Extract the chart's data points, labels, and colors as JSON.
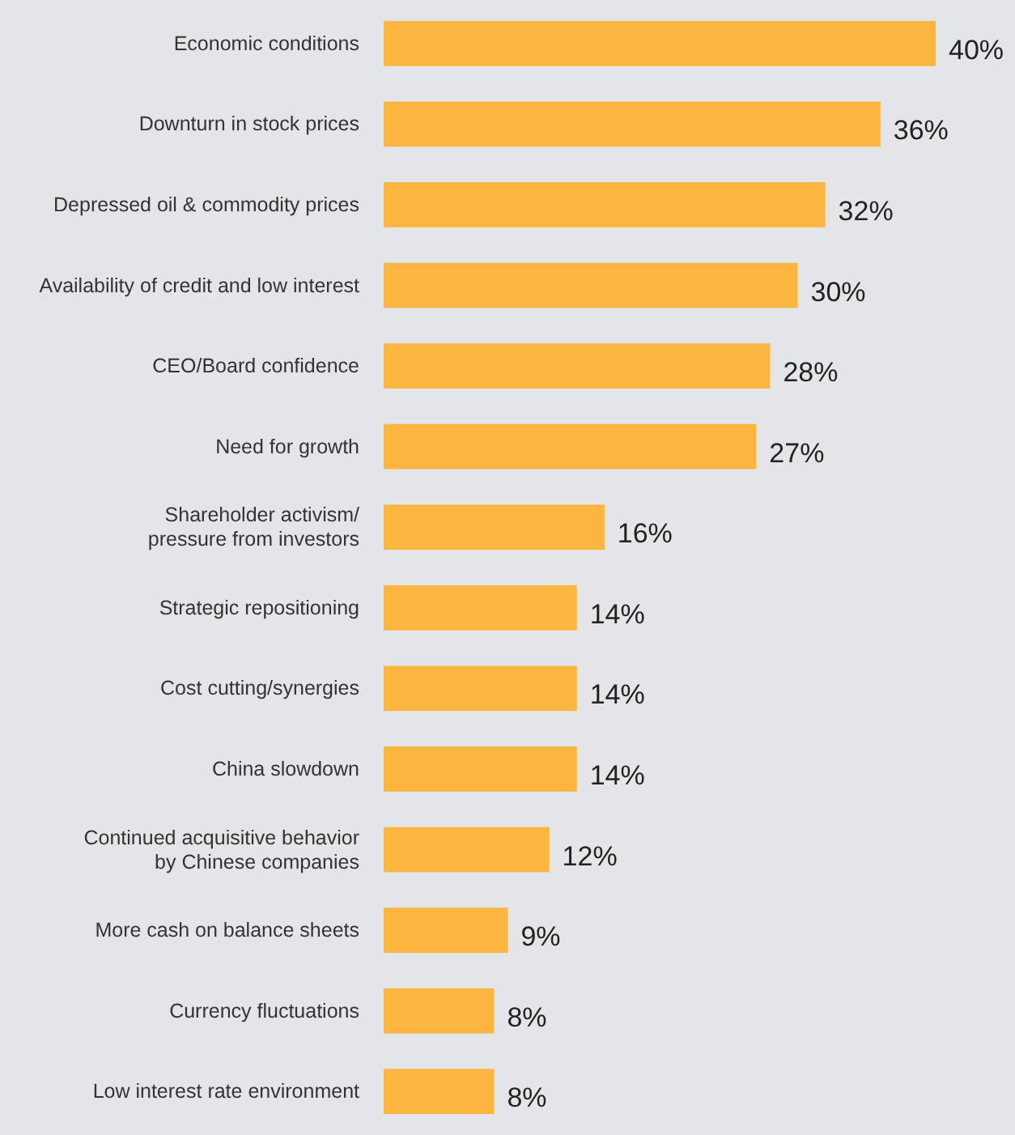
{
  "chart_data": {
    "type": "bar",
    "orientation": "horizontal",
    "categories": [
      "Economic conditions",
      "Downturn in stock prices",
      "Depressed oil & commodity prices",
      "Availability of credit and low interest",
      "CEO/Board confidence",
      "Need for growth",
      "Shareholder activism/\npressure from investors",
      "Strategic repositioning",
      "Cost cutting/synergies",
      "China slowdown",
      "Continued acquisitive behavior\nby Chinese companies",
      "More cash on balance sheets",
      "Currency fluctuations",
      "Low interest rate environment"
    ],
    "values": [
      40,
      36,
      32,
      30,
      28,
      27,
      16,
      14,
      14,
      14,
      12,
      9,
      8,
      8
    ],
    "value_labels": [
      "40%",
      "36%",
      "32%",
      "30%",
      "28%",
      "27%",
      "16%",
      "14%",
      "14%",
      "14%",
      "12%",
      "9%",
      "8%",
      "8%"
    ],
    "color": "#fbb540"
  }
}
